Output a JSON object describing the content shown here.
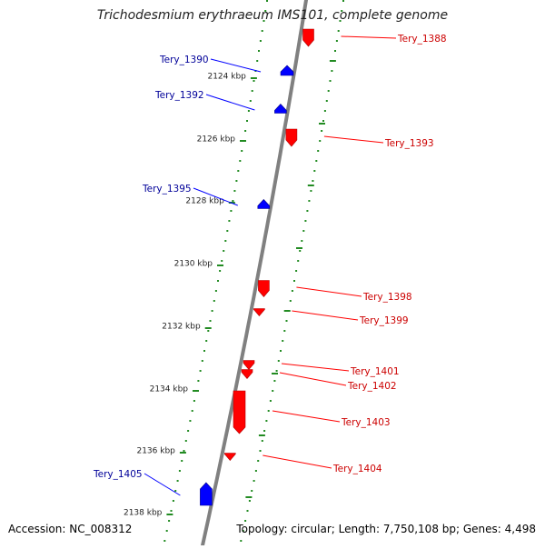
{
  "title": "Trichodesmium erythraeum IMS101, complete genome",
  "footer": {
    "accession": "Accession: NC_008312",
    "summary": "Topology: circular; Length: 7,750,108 bp; Genes: 4,498"
  },
  "colors": {
    "forward": "#ff0000",
    "reverse": "#0000ff",
    "tick": "#228b22",
    "backbone": "#808080",
    "label_forward": "#cc0000",
    "label_reverse": "#000099"
  },
  "axis": {
    "unit": "kbp",
    "ticks": [
      2124,
      2126,
      2128,
      2130,
      2132,
      2134,
      2136,
      2138
    ]
  },
  "genes": [
    {
      "name": "Tery_1388",
      "strand": "+"
    },
    {
      "name": "Tery_1390",
      "strand": "-"
    },
    {
      "name": "Tery_1392",
      "strand": "-"
    },
    {
      "name": "Tery_1393",
      "strand": "+"
    },
    {
      "name": "Tery_1395",
      "strand": "-"
    },
    {
      "name": "Tery_1398",
      "strand": "+"
    },
    {
      "name": "Tery_1399",
      "strand": "+"
    },
    {
      "name": "Tery_1401",
      "strand": "+"
    },
    {
      "name": "Tery_1402",
      "strand": "+"
    },
    {
      "name": "Tery_1403",
      "strand": "+"
    },
    {
      "name": "Tery_1404",
      "strand": "+"
    },
    {
      "name": "Tery_1405",
      "strand": "-"
    }
  ]
}
